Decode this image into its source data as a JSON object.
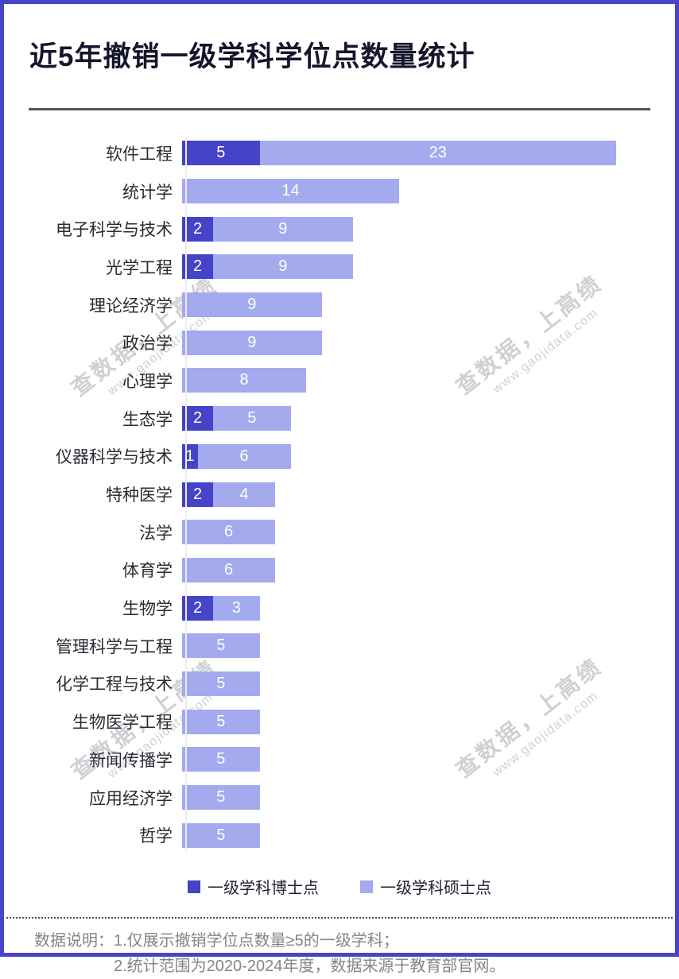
{
  "title": "近5年撤销一级学科学位点数量统计",
  "chart_data": {
    "type": "bar",
    "orientation": "horizontal",
    "stacked": true,
    "title": "近5年撤销一级学科学位点数量统计",
    "categories": [
      "软件工程",
      "统计学",
      "电子科学与技术",
      "光学工程",
      "理论经济学",
      "政治学",
      "心理学",
      "生态学",
      "仪器科学与技术",
      "特种医学",
      "法学",
      "体育学",
      "生物学",
      "管理科学与工程",
      "化学工程与技术",
      "生物医学工程",
      "新闻传播学",
      "应用经济学",
      "哲学"
    ],
    "series": [
      {
        "name": "一级学科博士点",
        "color": "#4543c7",
        "values": [
          5,
          0,
          2,
          2,
          0,
          0,
          0,
          2,
          1,
          2,
          0,
          0,
          2,
          0,
          0,
          0,
          0,
          0,
          0
        ]
      },
      {
        "name": "一级学科硕士点",
        "color": "#a3aaee",
        "values": [
          23,
          14,
          9,
          9,
          9,
          9,
          8,
          5,
          6,
          4,
          6,
          6,
          3,
          5,
          5,
          5,
          5,
          5,
          5
        ]
      }
    ],
    "xlim": [
      0,
      28
    ],
    "grid": false,
    "legend_position": "bottom",
    "value_labels": "white, centered inside each segment; zero segments hidden"
  },
  "legend": [
    {
      "label": "一级学科博士点",
      "color": "#4543c7"
    },
    {
      "label": "一级学科硕士点",
      "color": "#a3aaee"
    }
  ],
  "watermark": {
    "line1": "查数据，上高绩",
    "line2": "www.gaojidata.com"
  },
  "footer": {
    "label": "数据说明：",
    "line1": "1.仅展示撤销学位点数量≥5的一级学科；",
    "line2": "2.统计范围为2020-2024年度，数据来源于教育部官网。"
  },
  "colors": {
    "frame": "#4744c6",
    "doctor_segment": "#4543c7",
    "master_segment": "#a3aaee",
    "divider": "#53535b",
    "footnote_text": "#84848d"
  }
}
